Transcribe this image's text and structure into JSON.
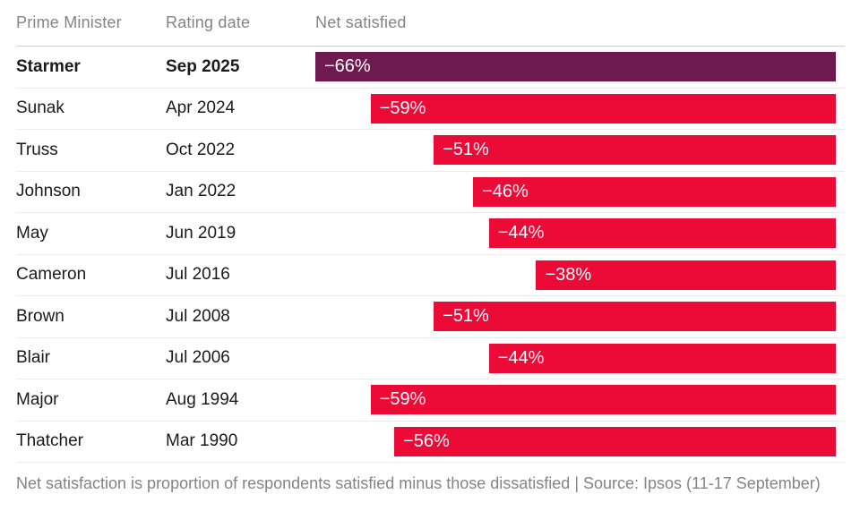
{
  "table": {
    "columns": [
      "Prime Minister",
      "Rating date",
      "Net satisfied"
    ],
    "rows": [
      {
        "pm": "Starmer",
        "date": "Sep 2025",
        "value": -66,
        "label": "−66%",
        "highlight": true
      },
      {
        "pm": "Sunak",
        "date": "Apr 2024",
        "value": -59,
        "label": "−59%",
        "highlight": false
      },
      {
        "pm": "Truss",
        "date": "Oct 2022",
        "value": -51,
        "label": "−51%",
        "highlight": false
      },
      {
        "pm": "Johnson",
        "date": "Jan 2022",
        "value": -46,
        "label": "−46%",
        "highlight": false
      },
      {
        "pm": "May",
        "date": "Jun 2019",
        "value": -44,
        "label": "−44%",
        "highlight": false
      },
      {
        "pm": "Cameron",
        "date": "Jul 2016",
        "value": -38,
        "label": "−38%",
        "highlight": false
      },
      {
        "pm": "Brown",
        "date": "Jul 2008",
        "value": -51,
        "label": "−51%",
        "highlight": false
      },
      {
        "pm": "Blair",
        "date": "Jul 2006",
        "value": -44,
        "label": "−44%",
        "highlight": false
      },
      {
        "pm": "Major",
        "date": "Aug 1994",
        "value": -59,
        "label": "−59%",
        "highlight": false
      },
      {
        "pm": "Thatcher",
        "date": "Mar 1990",
        "value": -56,
        "label": "−56%",
        "highlight": false
      }
    ]
  },
  "footer_note": "Net satisfaction is proportion of respondents satisfied minus those dissatisfied | Source: Ipsos (11-17 September)",
  "colors": {
    "bar_red": "#EC0A36",
    "bar_highlight_purple": "#6E1A50",
    "header_text": "#848484",
    "row_text": "#1A1A1A",
    "row_divider": "#EBEBEB",
    "header_divider": "#CFCFCF",
    "background": "#FFFFFF"
  },
  "chart_data": {
    "type": "bar",
    "orientation": "horizontal",
    "title": "",
    "columns": [
      "Prime Minister",
      "Rating date",
      "Net satisfied"
    ],
    "categories": [
      "Starmer",
      "Sunak",
      "Truss",
      "Johnson",
      "May",
      "Cameron",
      "Brown",
      "Blair",
      "Major",
      "Thatcher"
    ],
    "rating_dates": [
      "Sep 2025",
      "Apr 2024",
      "Oct 2022",
      "Jan 2022",
      "Jun 2019",
      "Jul 2016",
      "Jul 2008",
      "Jul 2006",
      "Aug 1994",
      "Mar 1990"
    ],
    "values": [
      -66,
      -59,
      -51,
      -46,
      -44,
      -38,
      -51,
      -44,
      -59,
      -56
    ],
    "data_labels": [
      "−66%",
      "−59%",
      "−51%",
      "−46%",
      "−44%",
      "−38%",
      "−51%",
      "−44%",
      "−59%",
      "−56%"
    ],
    "xlim": [
      -66,
      0
    ],
    "bars_right_aligned": true,
    "highlight_index": 0,
    "grid": false,
    "legend": false,
    "note": "Net satisfaction is proportion of respondents satisfied minus those dissatisfied | Source: Ipsos (11-17 September)"
  }
}
